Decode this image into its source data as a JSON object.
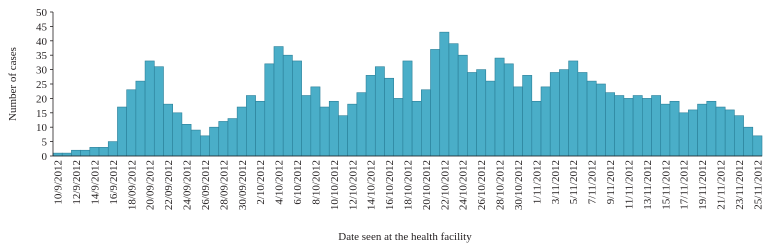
{
  "chart_data": {
    "type": "bar",
    "y_label": "Number of cases",
    "x_label": "Date seen at the health facility",
    "color": "#4aaec8",
    "edge_color": "#2a7f98",
    "categories": [
      "10/9/2012",
      null,
      "12/9/2012",
      null,
      "14/9/2012",
      null,
      "16/9/2012",
      null,
      "18/09/2012",
      null,
      "20/09/2012",
      null,
      "22/09/2012",
      null,
      "24/09/2012",
      null,
      "26/09/2012",
      null,
      "28/09/2012",
      null,
      "30/09/2012",
      null,
      "2/10/2012",
      null,
      "4/10/2012",
      null,
      "6/10/2012",
      null,
      "8/10/2012",
      null,
      "10/10/2012",
      null,
      "12/10/2012",
      null,
      "14/10/2012",
      null,
      "16/10/2012",
      null,
      "18/10/2012",
      null,
      "20/10/2012",
      null,
      "22/10/2012",
      null,
      "24/10/2012",
      null,
      "26/10/2012",
      null,
      "28/10/2012",
      null,
      "30/10/2012",
      null,
      "1/11/2012",
      null,
      "3/11/2012",
      null,
      "5/11/2012",
      null,
      "7/11/2012",
      null,
      "9/11/2012",
      null,
      "11/11/2012",
      null,
      "13/11/2012",
      null,
      "15/11/2012",
      null,
      "17/11/2012",
      null,
      "19/11/2012",
      null,
      "21/11/2012",
      null,
      "23/11/2012",
      null,
      "25/11/2012"
    ],
    "values": [
      1,
      1,
      2,
      2,
      3,
      3,
      5,
      17,
      23,
      26,
      33,
      31,
      18,
      15,
      11,
      9,
      7,
      10,
      12,
      13,
      17,
      21,
      19,
      32,
      38,
      35,
      33,
      21,
      24,
      17,
      19,
      14,
      18,
      22,
      28,
      31,
      27,
      20,
      33,
      19,
      23,
      37,
      43,
      39,
      35,
      29,
      30,
      26,
      34,
      32,
      24,
      28,
      19,
      24,
      29,
      30,
      33,
      29,
      26,
      25,
      22,
      21,
      20,
      21,
      20,
      21,
      18,
      19,
      15,
      16,
      18,
      19,
      17,
      16,
      14,
      10,
      7
    ],
    "ylim": [
      0,
      50
    ],
    "yticks": [
      0,
      5,
      10,
      15,
      20,
      25,
      30,
      35,
      40,
      45,
      50
    ]
  }
}
